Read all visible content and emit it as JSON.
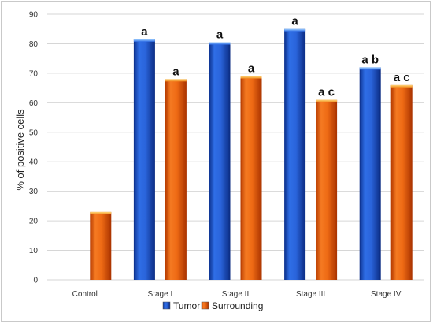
{
  "chart_data": {
    "type": "bar",
    "ylabel": "% of positive cells",
    "ylim": [
      0,
      90
    ],
    "yticks": [
      0,
      10,
      20,
      30,
      40,
      50,
      60,
      70,
      80,
      90
    ],
    "grid": true,
    "categories": [
      "Control",
      "Stage I",
      "Stage II",
      "Stage III",
      "Stage IV"
    ],
    "series": [
      {
        "name": "Tumor",
        "color": "#1f5fd6",
        "values": [
          null,
          81.5,
          80.5,
          85,
          72
        ],
        "labels": [
          "",
          "a",
          "a",
          "a",
          "a b"
        ]
      },
      {
        "name": "Surrounding",
        "color": "#e8610f",
        "values": [
          23,
          68,
          69,
          61,
          66
        ],
        "labels": [
          "",
          "a",
          "a",
          "a c",
          "a c"
        ]
      }
    ],
    "legend_position": "bottom"
  }
}
